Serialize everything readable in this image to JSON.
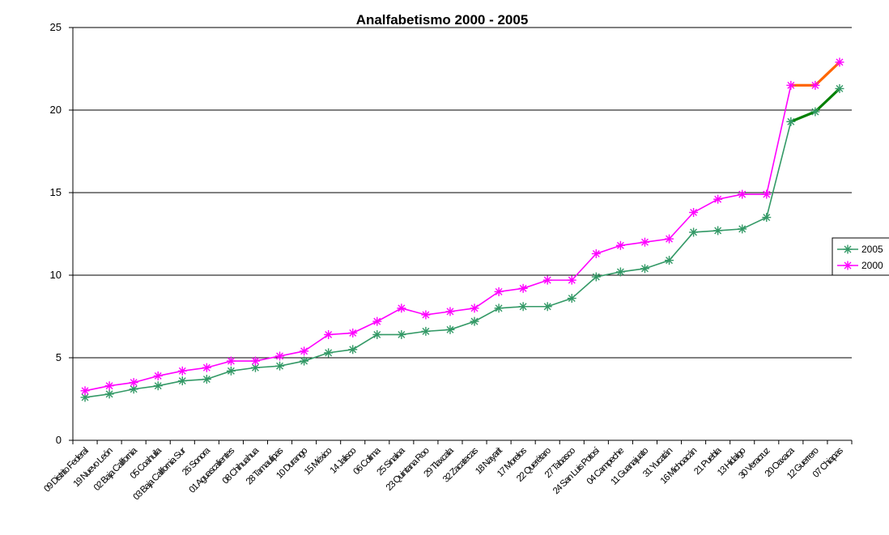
{
  "chart_data": {
    "type": "line",
    "title": "Analfabetismo  2000 - 2005",
    "ylim": [
      0,
      25
    ],
    "yticks": [
      "0",
      "5",
      "10",
      "15",
      "20",
      "25"
    ],
    "grid": "horizontal",
    "legend_position": "right",
    "categories": [
      "09 Distrito Federal",
      "19 Nuevo León",
      "02 Baja California",
      "05 Coahuila",
      "03 Baja California Sur",
      "26 Sonora",
      "01 Aguascalientes",
      "08 Chihuahua",
      "28 Tamaulipas",
      "10 Durango",
      "15 México",
      "14 Jalisco",
      "06 Colima",
      "25 Sinaloa",
      "23 Quintana Roo",
      "29 Tlaxcala",
      "32 Zacatecas",
      "18 Nayarit",
      "17 Morelos",
      "22 Querétaro",
      "27 Tabasco",
      "24 San Luis Potosí",
      "04 Campeche",
      "11 Guanajuato",
      "31 Yucatán",
      "16 Michoacán",
      "21 Puebla",
      "13 Hidalgo",
      "30 Veracruz",
      "20 Oaxaca",
      "12 Guerrero",
      "07 Chiapas"
    ],
    "series": [
      {
        "name": "2005",
        "color": "#339966",
        "highlight_color": "#008000",
        "highlight_from_index": 29,
        "values": [
          2.6,
          2.8,
          3.1,
          3.3,
          3.6,
          3.7,
          4.2,
          4.4,
          4.5,
          4.8,
          5.3,
          5.5,
          6.4,
          6.4,
          6.6,
          6.7,
          7.2,
          8.0,
          8.1,
          8.1,
          8.6,
          9.9,
          10.2,
          10.4,
          10.9,
          12.6,
          12.7,
          12.8,
          13.5,
          19.3,
          19.9,
          21.3
        ]
      },
      {
        "name": "2000",
        "color": "#ff00ff",
        "highlight_color": "#ff6600",
        "highlight_from_index": 29,
        "values": [
          3.0,
          3.3,
          3.5,
          3.9,
          4.2,
          4.4,
          4.8,
          4.8,
          5.1,
          5.4,
          6.4,
          6.5,
          7.2,
          8.0,
          7.6,
          7.8,
          8.0,
          9.0,
          9.2,
          9.7,
          9.7,
          11.3,
          11.8,
          12.0,
          12.2,
          13.8,
          14.6,
          14.9,
          14.9,
          21.5,
          21.5,
          22.9
        ]
      }
    ]
  }
}
